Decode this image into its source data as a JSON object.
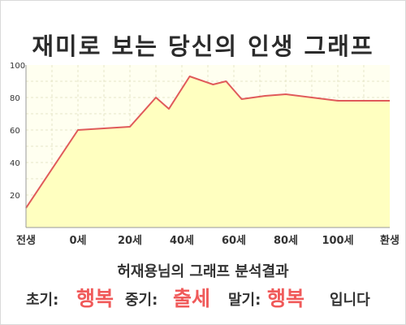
{
  "title": "재미로 보는 당신의 인생 그래프",
  "result": {
    "heading": "허재용님의 그래프 분석결과",
    "early_label": "초기:",
    "early_value": "행복",
    "mid_label": "중기:",
    "mid_value": "출세",
    "late_label": "말기:",
    "late_value": "행복",
    "ending": "입니다"
  },
  "colors": {
    "line": "#e05a5a",
    "fill": "#ffffc0",
    "plot_bg": "#fffff0",
    "grid": "#e6e6c8",
    "accent_text": "#f05a5a"
  },
  "chart_data": {
    "type": "area",
    "title": "재미로 보는 당신의 인생 그래프",
    "xlabel": "",
    "ylabel": "",
    "x_ticks": [
      "전생",
      "0세",
      "20세",
      "40세",
      "60세",
      "80세",
      "100세",
      "환생"
    ],
    "ylim": [
      0,
      100
    ],
    "y_ticks": [
      20,
      40,
      60,
      80,
      100
    ],
    "grid": true,
    "series": [
      {
        "x": [
          -20,
          0,
          10,
          20,
          30,
          35,
          43,
          52,
          57,
          63,
          72,
          80,
          90,
          100
        ],
        "values": [
          12,
          60,
          61,
          62,
          80,
          73,
          93,
          88,
          90,
          79,
          81,
          82,
          80,
          78
        ]
      }
    ]
  }
}
